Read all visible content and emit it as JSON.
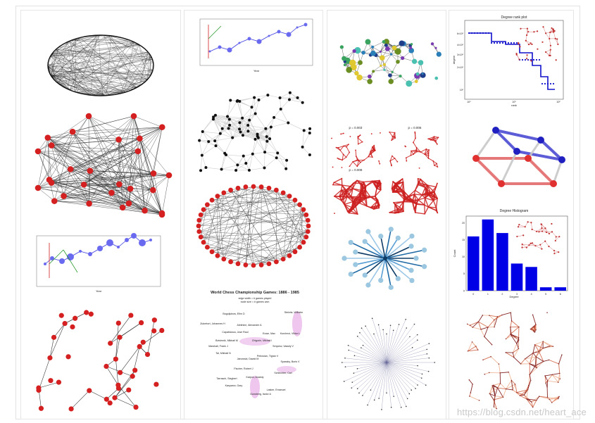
{
  "panels": {
    "chess": {
      "title": "World Chess Championship Games: 1886 - 1985",
      "legend_line1": "edge width = # games played",
      "legend_line2": "node size = # games won",
      "names": [
        "Bogoljubow, Efim D",
        "Alekhine, Alexander A",
        "Euwe, Max",
        "Botvinnik, Mikhail M",
        "Smyslov, Vassily V",
        "Tal, Mikhail N",
        "Petrosian, Tigran V",
        "Spassky, Boris V",
        "Fischer, Robert J",
        "Karpov, Anatoly",
        "Kasparov, Gary",
        "Lasker, Emanuel",
        "Steinitz, Wilhelm",
        "Zukertort, Johannes H",
        "Capablanca, Jose Raul",
        "Chigorin, Mikhail I",
        "Marshall, Frank J",
        "Janowski, Dawid M",
        "Schlechter, Carl",
        "Tarrasch, Siegbert",
        "Gunsberg, Isidor A",
        "Korchnoi, Viktor L"
      ]
    },
    "rank_plot": {
      "title": "Degree rank plot",
      "xlabel": "rank",
      "ylabel": "degree",
      "xticks": [
        "10⁰",
        "10¹",
        "10²"
      ],
      "yticks": [
        "6×10⁰",
        "4×10⁰",
        "3×10⁰",
        "2×10⁰",
        "10⁰"
      ]
    },
    "histogram": {
      "title": "Degree Histogram",
      "xlabel": "Degree",
      "ylabel": "Count",
      "xticks": [
        "0",
        "1",
        "2",
        "3",
        "4",
        "5",
        "6"
      ],
      "yticks": [
        "0",
        "5",
        "10",
        "15",
        "20"
      ]
    },
    "threshold": {
      "label_a": "p = 0.003",
      "label_b": "p = 0.006",
      "label_c": "p = 0.008",
      "label_d": "p = 0.01"
    },
    "lines_chart": {
      "xlabel": "Year"
    }
  },
  "colors": {
    "node_red": "#d42020",
    "node_blue": "#3a3ae0",
    "edge_dark": "#222222"
  },
  "chart_data": [
    {
      "type": "bar",
      "title": "Degree Histogram",
      "xlabel": "Degree",
      "ylabel": "Count",
      "categories": [
        "0",
        "1",
        "2",
        "3",
        "4",
        "5",
        "6"
      ],
      "values": [
        16,
        21,
        17,
        8,
        7,
        1,
        1
      ],
      "ylim": [
        0,
        22
      ]
    }
  ],
  "watermark": "https://blog.csdn.net/heart_ace"
}
